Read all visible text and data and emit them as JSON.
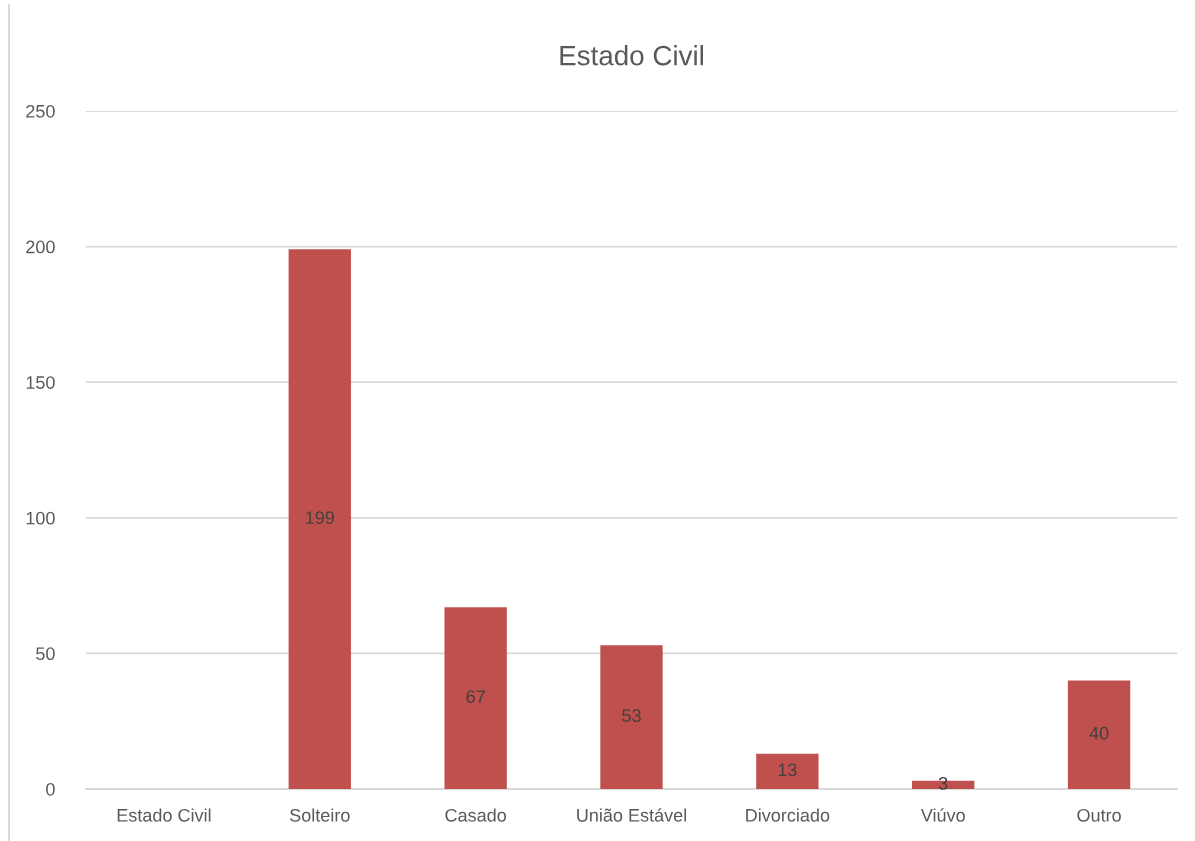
{
  "chart_data": {
    "type": "bar",
    "title": "Estado Civil",
    "categories": [
      "Estado Civil",
      "Solteiro",
      "Casado",
      "União Estável",
      "Divorciado",
      "Viúvo",
      "Outro"
    ],
    "values": [
      null,
      199,
      67,
      53,
      13,
      3,
      40
    ],
    "color": "#c0504d",
    "ylim": [
      0,
      250
    ],
    "yticks": [
      0,
      50,
      100,
      150,
      200,
      250
    ],
    "grid": "y",
    "data_labels": true
  }
}
